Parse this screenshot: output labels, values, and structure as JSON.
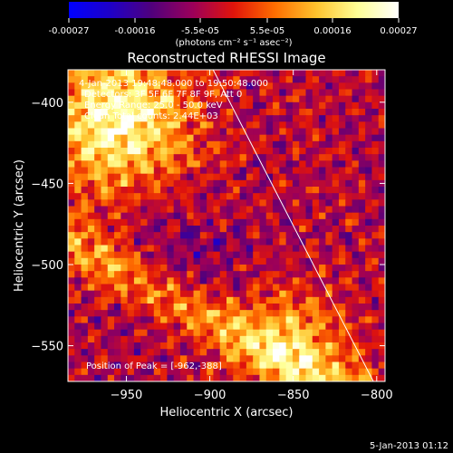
{
  "colorbar": {
    "ticks": [
      "-0.00027",
      "-0.00016",
      "-5.5e-05",
      "5.5e-05",
      "0.00016",
      "0.00027"
    ],
    "unit_label": "(photons cm⁻² s⁻¹ asec⁻²)",
    "colors": [
      "#0000ff",
      "#1e00c8",
      "#50007d",
      "#9b005a",
      "#e1140a",
      "#ff6e00",
      "#ffc32d",
      "#ffff96",
      "#ffffff"
    ]
  },
  "title": "Reconstructed RHESSI Image",
  "annotations": {
    "time": "4-Jan-2013 19:48:48.000 to 19:50:48.000",
    "detectors": "Detectors: 3F 5F 6F 7F 8F 9F, Att 0",
    "energy": "Energy Range: 25.0 - 50.0 keV",
    "clean": "Clean     Total counts: 2.44E+03",
    "peak": "Position of Peak = [-962,-388]"
  },
  "footer_date": "5-Jan-2013 01:12",
  "chart_data": {
    "type": "heatmap",
    "title": "Reconstructed RHESSI Image",
    "xlabel": "Heliocentric X (arcsec)",
    "ylabel": "Heliocentric Y (arcsec)",
    "xlim": [
      -985,
      -795
    ],
    "ylim": [
      -572,
      -380
    ],
    "xticks": [
      -950,
      -900,
      -850,
      -800
    ],
    "yticks": [
      -400,
      -450,
      -500,
      -550
    ],
    "color_range": [
      -0.00027,
      0.00027
    ],
    "peak_position": [
      -962,
      -388
    ],
    "limb_line": [
      [
        -898,
        -380
      ],
      [
        -802,
        -572
      ]
    ]
  }
}
